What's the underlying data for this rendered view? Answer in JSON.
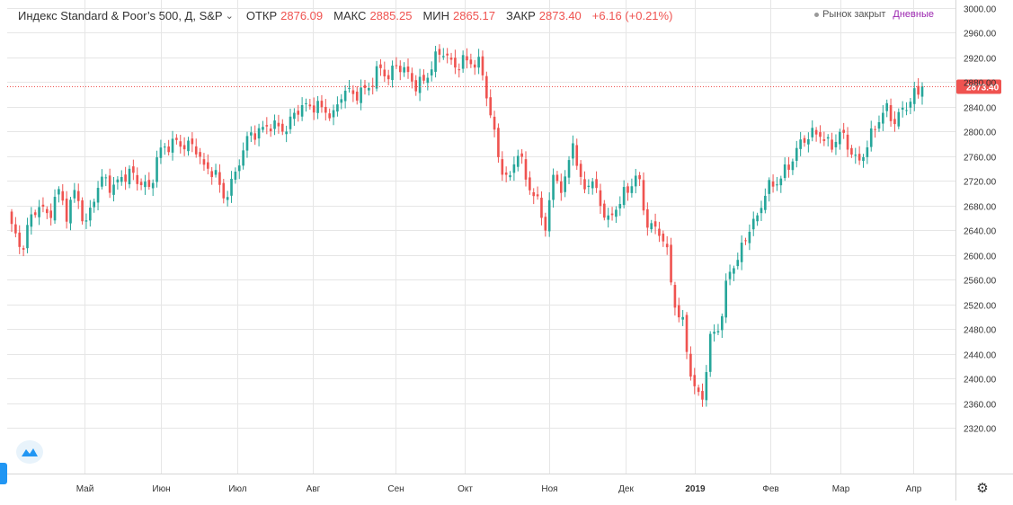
{
  "header": {
    "symbol": "Индекс Standard & Poor’s 500, Д, S&P",
    "open_label": "ОТКР",
    "open_value": "2876.09",
    "high_label": "МАКС",
    "high_value": "2885.25",
    "low_label": "МИН",
    "low_value": "2865.17",
    "close_label": "ЗАКР",
    "close_value": "2873.40",
    "change": "+6.16 (+0.21%)",
    "market_status": "Рынок закрыт",
    "period": "Дневные"
  },
  "colors": {
    "up": "#26a69a",
    "down": "#ef5350",
    "grid": "#e6e6e6",
    "price_line": "#ef5350"
  },
  "icons": {
    "chevron": "chevron-down-icon",
    "logo": "tradingview-logo-icon",
    "settings": "gear-icon"
  },
  "chart_data": {
    "type": "candlestick",
    "y_ticks": [
      "2320.00",
      "2360.00",
      "2400.00",
      "2440.00",
      "2480.00",
      "2520.00",
      "2560.00",
      "2600.00",
      "2640.00",
      "2680.00",
      "2720.00",
      "2760.00",
      "2800.00",
      "2840.00",
      "2880.00",
      "2920.00",
      "2960.00",
      "3000.00"
    ],
    "ylim": [
      2295,
      3005
    ],
    "x_ticks": [
      "Май",
      "Июн",
      "Июл",
      "Авг",
      "Сен",
      "Окт",
      "Ноя",
      "Дек",
      "2019",
      "Фев",
      "Мар",
      "Апр"
    ],
    "x_tick_bold": "2019",
    "last_price_label": "2873.40",
    "last_price": 2873.4,
    "anchors": [
      2640,
      2600,
      2660,
      2690,
      2660,
      2700,
      2660,
      2710,
      2650,
      2700,
      2720,
      2700,
      2730,
      2740,
      2720,
      2700,
      2760,
      2780,
      2790,
      2780,
      2770,
      2730,
      2740,
      2700,
      2720,
      2760,
      2790,
      2800,
      2820,
      2810,
      2800,
      2830,
      2840,
      2850,
      2840,
      2820,
      2860,
      2860,
      2870,
      2880,
      2900,
      2880,
      2910,
      2900,
      2880,
      2880,
      2910,
      2930,
      2910,
      2920,
      2910,
      2900,
      2830,
      2760,
      2720,
      2770,
      2710,
      2690,
      2650,
      2740,
      2700,
      2780,
      2700,
      2730,
      2690,
      2650,
      2680,
      2700,
      2740,
      2660,
      2640,
      2620,
      2520,
      2490,
      2400,
      2360,
      2460,
      2480,
      2580,
      2600,
      2640,
      2650,
      2700,
      2720,
      2740,
      2760,
      2780,
      2790,
      2800,
      2780,
      2800,
      2770,
      2740,
      2780,
      2820,
      2840,
      2810,
      2830,
      2860,
      2875
    ]
  }
}
